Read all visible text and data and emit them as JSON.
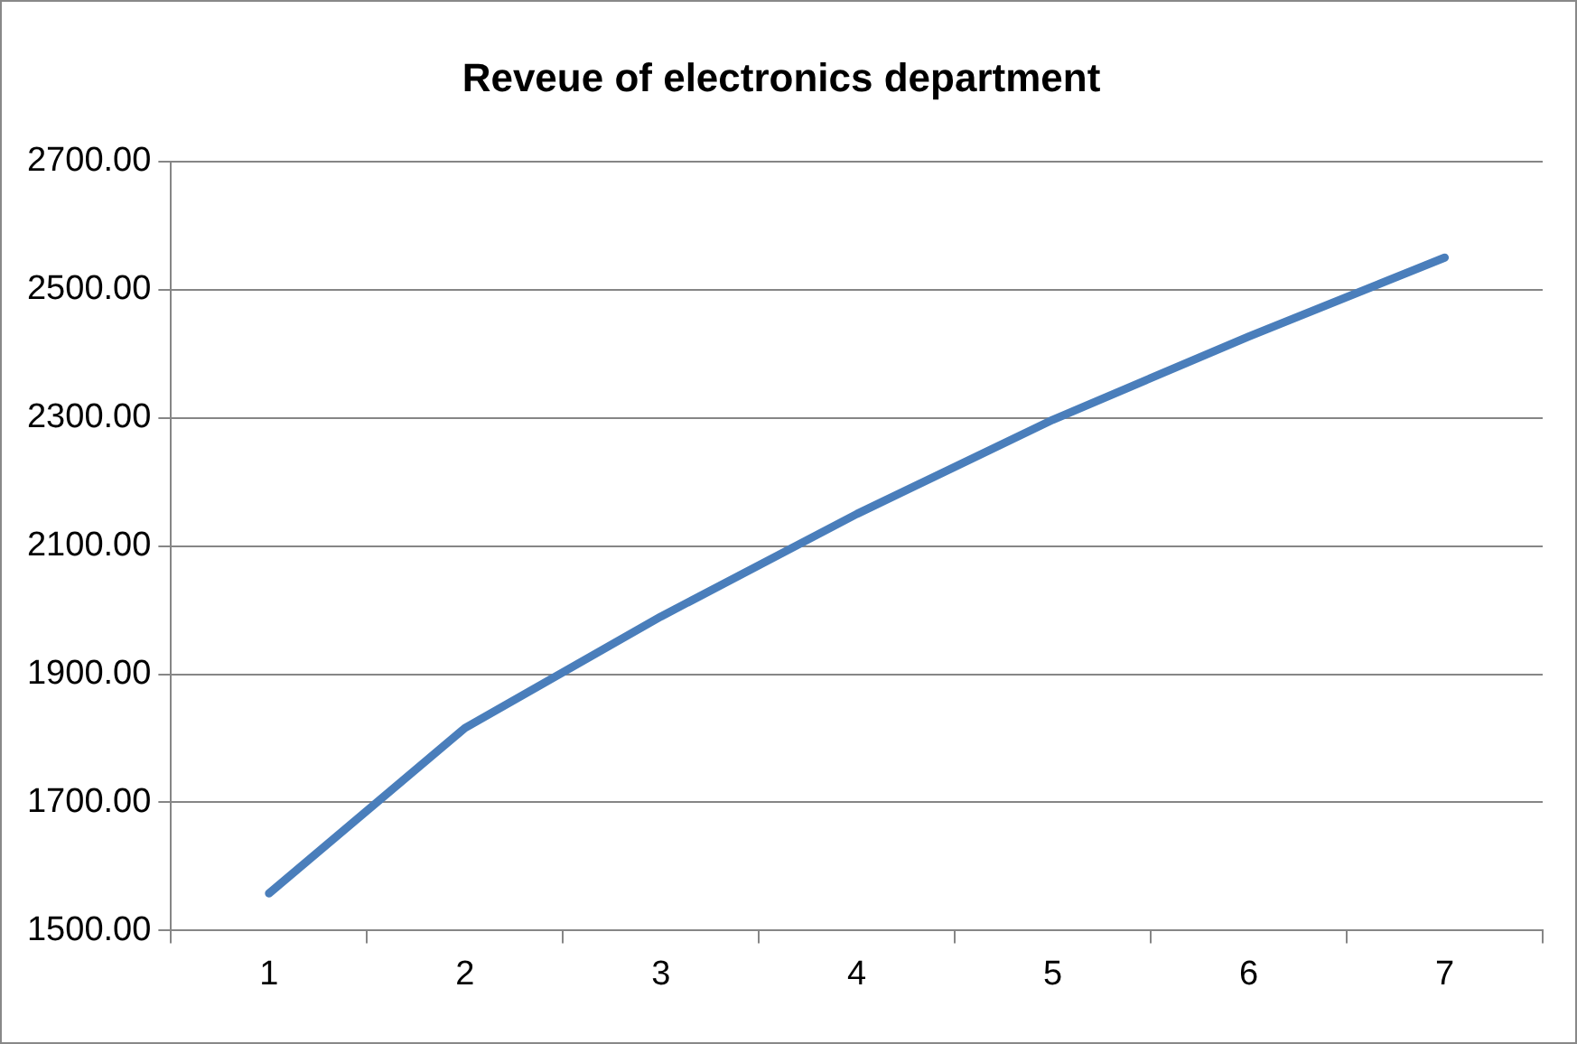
{
  "chart_data": {
    "type": "line",
    "title": "Reveue of electronics department",
    "categories": [
      "1",
      "2",
      "3",
      "4",
      "5",
      "6",
      "7"
    ],
    "series": [
      {
        "color": "#4a7ebb",
        "values": [
          1558,
          1816,
          1990,
          2150,
          2297,
          2427,
          2550
        ]
      }
    ],
    "ylim": [
      1500,
      2700
    ],
    "yticks": [
      {
        "value": 1500,
        "label": "1500.00"
      },
      {
        "value": 1700,
        "label": "1700.00"
      },
      {
        "value": 1900,
        "label": "1900.00"
      },
      {
        "value": 2100,
        "label": "2100.00"
      },
      {
        "value": 2300,
        "label": "2300.00"
      },
      {
        "value": 2500,
        "label": "2500.00"
      },
      {
        "value": 2700,
        "label": "2700.00"
      }
    ],
    "grid": "y",
    "legend": false,
    "marker": "none",
    "line_style": "solid"
  }
}
